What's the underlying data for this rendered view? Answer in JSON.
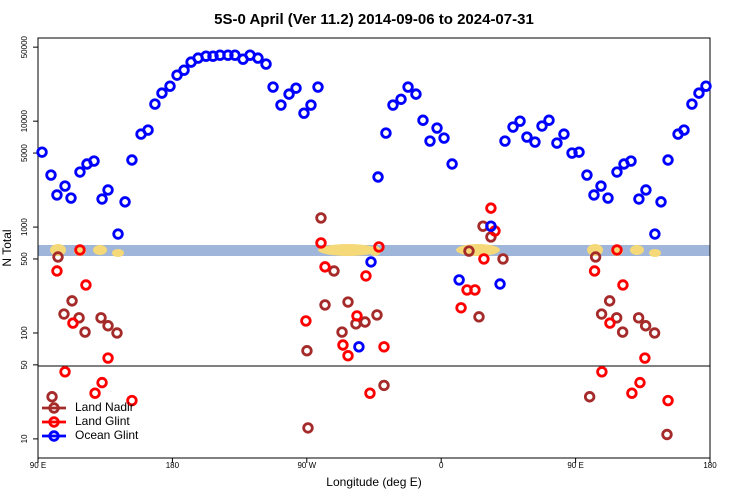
{
  "chart_data": {
    "type": "scatter",
    "title": "5S-0 April (Ver 11.2)   2014-09-06 to 2024-07-31",
    "x_label": "Longitude (deg E)",
    "y_label": "N Total",
    "xlim": [
      90,
      540
    ],
    "xticks": [
      {
        "value": 90,
        "label": "90 E"
      },
      180,
      {
        "value": 270,
        "label": "90 W"
      },
      {
        "value": 360,
        "label": "0"
      },
      {
        "value": 450,
        "label": "90 E"
      },
      {
        "value": 540,
        "label": "180"
      }
    ],
    "ylim": [
      6.6,
      61000
    ],
    "yscale": "log",
    "yticks": [
      10,
      50,
      100,
      500,
      1000,
      5000,
      10000,
      50000
    ],
    "legend": "bottom-left",
    "series": [
      {
        "name": "Land Nadir",
        "color": "#a52a2a",
        "x": [
          99.4,
          103.4,
          107.4,
          112.8,
          117.5,
          121.5,
          132.2,
          136.9,
          142.9,
          270.1,
          270.8,
          279.5,
          282.2,
          288.2,
          293.6,
          297.6,
          302.9,
          309.0,
          317.0,
          321.7,
          378.6,
          385.3,
          388.0,
          393.3,
          401.4,
          459.4,
          463.4,
          467.4,
          472.8,
          477.5,
          481.5,
          492.2,
          496.9,
          502.9,
          511.2
        ],
        "values": [
          25,
          522,
          151,
          201,
          139,
          102,
          139,
          117,
          100,
          68,
          12.7,
          1220,
          184,
          385,
          102,
          196,
          122,
          127,
          148,
          32,
          594,
          142,
          1020,
          807,
          500,
          25,
          522,
          151,
          201,
          139,
          102,
          139,
          117,
          100,
          11
        ]
      },
      {
        "name": "Land Glint",
        "color": "#ff0000",
        "x": [
          102.7,
          108.1,
          113.4,
          118.1,
          122.1,
          128.2,
          132.9,
          136.9,
          152.9,
          269.4,
          279.5,
          282.2,
          294.2,
          297.6,
          303.6,
          309.6,
          312.3,
          318.3,
          321.7,
          373.3,
          377.3,
          382.6,
          388.6,
          393.3,
          396.0,
          462.7,
          467.6,
          473.0,
          477.7,
          481.7,
          487.7,
          493.1,
          496.4,
          511.9
        ],
        "values": [
          385,
          43,
          124,
          608,
          284,
          27,
          34,
          58,
          23,
          130,
          708,
          421,
          77,
          61,
          145,
          346,
          27,
          649,
          74,
          173,
          255,
          255,
          500,
          1510,
          919,
          385,
          43,
          124,
          608,
          284,
          27,
          34,
          58,
          23
        ]
      },
      {
        "name": "Ocean Glint",
        "color": "#0000ff",
        "x": [
          92.7,
          98.7,
          102.7,
          108.1,
          112.1,
          118.1,
          122.8,
          127.5,
          132.9,
          136.9,
          143.6,
          148.3,
          152.9,
          159.0,
          163.7,
          168.3,
          173.0,
          178.4,
          183.1,
          187.8,
          192.5,
          197.2,
          202.5,
          207.2,
          211.9,
          217.2,
          221.9,
          227.3,
          232.0,
          237.3,
          242.7,
          247.4,
          252.7,
          258.1,
          262.8,
          268.1,
          272.8,
          277.5,
          304.9,
          313.0,
          317.7,
          323.0,
          327.7,
          333.1,
          337.8,
          343.1,
          347.8,
          352.5,
          357.2,
          361.9,
          367.3,
          372.0,
          393.3,
          399.4,
          402.7,
          408.1,
          412.8,
          417.4,
          422.8,
          427.5,
          432.2,
          437.5,
          442.2,
          447.6,
          452.3,
          457.6,
          462.3,
          467.0,
          471.7,
          477.7,
          482.4,
          487.1,
          492.4,
          497.1,
          503.1,
          507.2,
          511.9,
          518.6,
          522.6,
          527.9,
          532.6,
          537.3
        ],
        "values": [
          5100,
          3100,
          2010,
          2440,
          1880,
          3310,
          3940,
          4200,
          1840,
          2240,
          860,
          1730,
          4300,
          7550,
          8240,
          14500,
          18400,
          21400,
          27200,
          30300,
          36100,
          39400,
          41100,
          41100,
          42000,
          42000,
          42000,
          38500,
          42000,
          39400,
          34600,
          21000,
          14200,
          18000,
          20500,
          11900,
          14200,
          21000,
          74,
          469,
          2970,
          7720,
          14200,
          16100,
          21000,
          18000,
          10200,
          6490,
          8610,
          6930,
          3940,
          317,
          1020,
          290,
          6490,
          8800,
          10000,
          7080,
          6350,
          9000,
          10200,
          6210,
          7550,
          5000,
          5100,
          3100,
          2010,
          2440,
          1880,
          3310,
          3940,
          4200,
          1840,
          2240,
          860,
          1730,
          4300,
          7550,
          8240,
          14500,
          18400,
          21400
        ]
      }
    ]
  }
}
